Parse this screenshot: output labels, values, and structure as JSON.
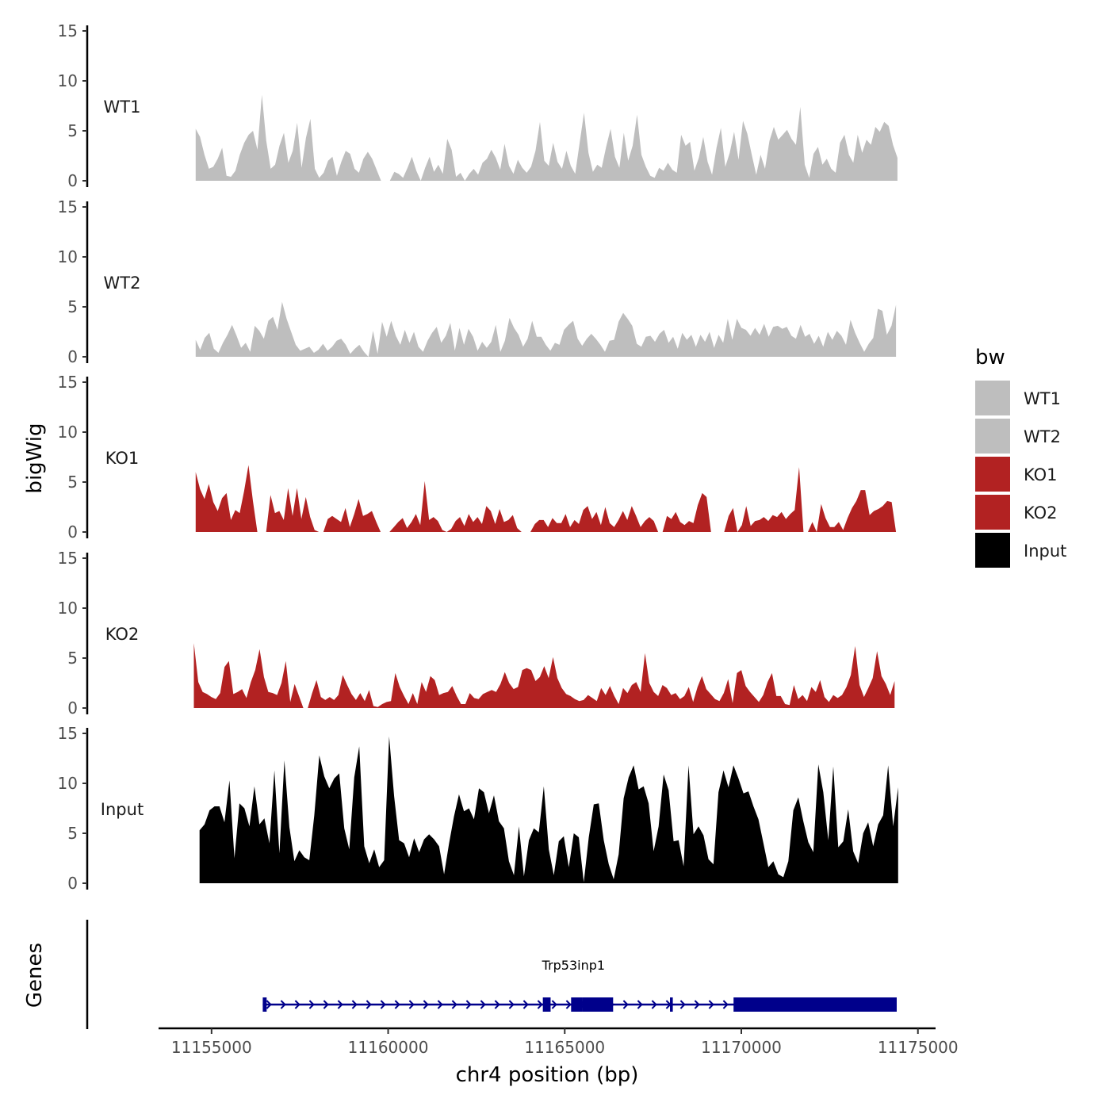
{
  "chart_data": {
    "type": "area",
    "ylabel": "bigWig",
    "xlabel": "chr4 position (bp)",
    "gene_panel_label": "Genes",
    "ylim": [
      0,
      15
    ],
    "yticks": [
      0,
      5,
      10,
      15
    ],
    "xlim": [
      11153500,
      11175500
    ],
    "xticks": [
      11155000,
      11160000,
      11165000,
      11170000,
      11175000
    ],
    "xtick_labels": [
      "11155000",
      "11160000",
      "11165000",
      "11170000",
      "11175000"
    ],
    "ytick_labels": [
      "0",
      "5",
      "10",
      "15"
    ],
    "legend": {
      "title": "bw",
      "position": "right",
      "entries": [
        {
          "label": "WT1",
          "color": "#bebebe"
        },
        {
          "label": "WT2",
          "color": "#bebebe"
        },
        {
          "label": "KO1",
          "color": "#b22222"
        },
        {
          "label": "KO2",
          "color": "#b22222"
        },
        {
          "label": "Input",
          "color": "#000000"
        }
      ]
    },
    "series": [
      {
        "name": "WT1",
        "color": "#bebebe",
        "x_start": 11154550,
        "x_end": 11174420,
        "values": [
          5.2,
          4.4,
          2.6,
          1.2,
          1.4,
          2.2,
          3.3,
          0.5,
          0.4,
          1.0,
          2.6,
          3.8,
          4.6,
          5.0,
          3.1,
          8.6,
          4.0,
          1.2,
          1.6,
          3.5,
          4.8,
          1.8,
          3.0,
          5.8,
          1.3,
          4.3,
          6.2,
          1.2,
          0.3,
          0.8,
          2.0,
          2.4,
          0.5,
          1.9,
          3.0,
          2.7,
          1.2,
          0.8,
          2.2,
          2.9,
          2.2,
          1.1,
          0,
          0,
          0,
          0.9,
          0.7,
          0.3,
          1.3,
          2.4,
          1.0,
          0,
          1.3,
          2.4,
          0.9,
          1.6,
          0.7,
          4.2,
          3.1,
          0.4,
          0.8,
          0,
          0.7,
          1.2,
          0.6,
          1.8,
          2.2,
          3.1,
          2.3,
          1.1,
          3.7,
          1.5,
          0.7,
          2.1,
          1.3,
          0.8,
          1.4,
          3.0,
          5.9,
          2.0,
          1.5,
          3.8,
          1.9,
          1.2,
          3.0,
          1.5,
          0.7,
          3.8,
          6.8,
          2.8,
          0.9,
          1.6,
          1.3,
          3.4,
          5.2,
          2.4,
          1.3,
          4.8,
          2.0,
          3.5,
          6.6,
          2.6,
          1.4,
          0.5,
          0.3,
          1.3,
          1.0,
          1.8,
          1.1,
          0.8,
          4.6,
          3.5,
          3.9,
          1.0,
          2.3,
          4.4,
          1.9,
          0.6,
          3.3,
          5.3,
          1.4,
          2.8,
          4.9,
          2.1,
          6.0,
          4.7,
          2.6,
          0.6,
          2.6,
          1.2,
          4.0,
          5.4,
          4.1,
          4.6,
          5.1,
          4.2,
          3.6,
          7.4,
          1.6,
          0.3,
          2.7,
          3.4,
          1.6,
          2.2,
          1.2,
          0.8,
          3.8,
          4.6,
          2.6,
          1.8,
          4.6,
          2.8,
          4.1,
          3.6,
          5.4,
          4.9,
          5.9,
          5.5,
          3.6,
          2.3
        ]
      },
      {
        "name": "WT2",
        "color": "#bebebe",
        "x_start": 11154550,
        "x_end": 11174380,
        "values": [
          1.7,
          0.7,
          1.9,
          2.4,
          0.8,
          0.4,
          1.4,
          2.2,
          3.2,
          2.1,
          0.9,
          1.4,
          0.5,
          3.1,
          2.6,
          1.8,
          3.6,
          4.0,
          2.7,
          5.5,
          3.8,
          2.5,
          1.2,
          0.6,
          0.8,
          1.0,
          0.4,
          0.7,
          1.3,
          0.6,
          1.0,
          1.6,
          1.8,
          1.2,
          0.3,
          0.8,
          1.2,
          0.5,
          0,
          2.6,
          0.3,
          3.5,
          2.0,
          3.6,
          2.1,
          1.2,
          2.7,
          1.4,
          2.5,
          1.0,
          0.5,
          1.6,
          2.4,
          3.0,
          1.4,
          2.1,
          3.4,
          0.6,
          2.9,
          1.2,
          2.8,
          2.0,
          0.6,
          1.5,
          0.9,
          1.5,
          3.2,
          0.5,
          1.6,
          3.9,
          2.9,
          2.2,
          1.0,
          1.8,
          3.6,
          2.0,
          2.0,
          1.2,
          0.6,
          1.4,
          1.2,
          2.7,
          3.2,
          3.6,
          1.8,
          1.1,
          1.8,
          2.3,
          1.8,
          1.2,
          0.5,
          1.6,
          1.7,
          3.5,
          4.4,
          3.8,
          3.1,
          1.3,
          1.0,
          2.0,
          2.1,
          1.5,
          2.3,
          2.7,
          1.4,
          2.0,
          0.8,
          2.4,
          1.7,
          2.2,
          1.0,
          2.2,
          1.5,
          2.5,
          0.9,
          2.2,
          1.4,
          3.8,
          1.7,
          3.8,
          2.9,
          2.7,
          2.1,
          2.9,
          2.2,
          3.3,
          2.0,
          3.0,
          3.1,
          2.8,
          3.0,
          2.1,
          1.8,
          3.2,
          2.0,
          2.3,
          1.3,
          2.1,
          1.0,
          2.5,
          1.7,
          2.6,
          2.1,
          1.2,
          3.7,
          2.4,
          1.4,
          0.5,
          1.3,
          1.9,
          4.8,
          4.6,
          2.2,
          3.1,
          5.2
        ]
      },
      {
        "name": "KO1",
        "color": "#b22222",
        "x_start": 11154550,
        "x_end": 11174380,
        "values": [
          6.0,
          4.3,
          3.3,
          4.8,
          3.0,
          2.1,
          3.4,
          3.9,
          1.2,
          2.2,
          1.9,
          4.1,
          6.7,
          3.1,
          0,
          0,
          0,
          3.7,
          1.9,
          2.1,
          1.2,
          4.4,
          1.6,
          4.4,
          1.3,
          3.5,
          1.5,
          0.2,
          0,
          0,
          1.3,
          1.6,
          1.3,
          1.0,
          2.4,
          0.5,
          1.8,
          3.3,
          1.6,
          1.8,
          2.1,
          1.0,
          0,
          0,
          0,
          0.5,
          1.0,
          1.4,
          0.4,
          1.0,
          1.8,
          0.7,
          5.1,
          1.2,
          1.5,
          1.1,
          0.2,
          0,
          0.3,
          1.1,
          1.5,
          0.6,
          1.8,
          1.0,
          1.5,
          0.8,
          2.6,
          2.1,
          0.8,
          2.3,
          1.0,
          1.2,
          1.7,
          0.4,
          0,
          0,
          0,
          0.8,
          1.2,
          1.2,
          0.5,
          1.4,
          0.9,
          0.9,
          1.8,
          0.5,
          1.2,
          0.8,
          2.2,
          2.6,
          1.3,
          2.0,
          0.7,
          2.5,
          0.9,
          0.5,
          1.2,
          2.1,
          1.2,
          2.6,
          1.6,
          0.5,
          1.1,
          1.5,
          1.1,
          0,
          0,
          1.6,
          1.3,
          2.0,
          1.0,
          0.7,
          1.1,
          0.9,
          2.7,
          3.9,
          3.5,
          0,
          0,
          0,
          0,
          1.6,
          2.4,
          0,
          0.7,
          2.6,
          0.6,
          1.1,
          1.2,
          1.5,
          1.1,
          1.7,
          1.5,
          2.0,
          1.3,
          1.8,
          2.2,
          6.5,
          0,
          0,
          1.0,
          0,
          2.8,
          1.4,
          0.5,
          0.5,
          1.0,
          0.2,
          1.4,
          2.4,
          3.1,
          4.2,
          4.2,
          1.7,
          2.1,
          2.3,
          2.6,
          3.1,
          3.0,
          0
        ]
      },
      {
        "name": "KO2",
        "color": "#b22222",
        "x_start": 11154500,
        "x_end": 11174340,
        "values": [
          6.5,
          2.6,
          1.6,
          1.4,
          1.1,
          0.9,
          1.5,
          4.1,
          4.7,
          1.4,
          1.6,
          1.9,
          1.0,
          2.6,
          3.8,
          5.9,
          3.1,
          1.6,
          1.5,
          1.3,
          2.5,
          4.7,
          0.6,
          2.4,
          1.2,
          0,
          0,
          1.5,
          2.8,
          1.1,
          0.8,
          1.1,
          0.8,
          1.3,
          3.3,
          2.3,
          1.4,
          0.8,
          1.5,
          0.7,
          1.8,
          0.2,
          0.1,
          0.4,
          0.6,
          0.7,
          3.5,
          2.1,
          1.2,
          0.4,
          1.5,
          0.4,
          2.6,
          1.6,
          3.2,
          2.8,
          1.3,
          1.5,
          1.6,
          2.2,
          1.2,
          0.4,
          0.4,
          1.5,
          1.0,
          0.9,
          1.4,
          1.6,
          1.8,
          1.6,
          2.4,
          3.6,
          2.5,
          1.9,
          2.1,
          3.8,
          4.0,
          3.8,
          2.7,
          3.1,
          4.2,
          3.0,
          5.1,
          3.0,
          2.0,
          1.4,
          1.2,
          0.9,
          0.7,
          0.8,
          1.3,
          1.0,
          0.7,
          2.0,
          1.3,
          2.2,
          1.2,
          0.4,
          2.0,
          1.5,
          2.3,
          2.6,
          1.6,
          5.5,
          2.5,
          1.6,
          1.2,
          2.3,
          2.0,
          1.3,
          1.5,
          0.9,
          1.2,
          2.1,
          0.6,
          2.1,
          3.2,
          1.9,
          1.4,
          0.9,
          0.7,
          1.5,
          2.9,
          0.5,
          3.5,
          3.8,
          2.2,
          1.6,
          1.1,
          0.6,
          1.3,
          2.6,
          3.5,
          1.2,
          1.2,
          0.4,
          0.3,
          2.3,
          0.9,
          1.3,
          0.7,
          2.1,
          1.6,
          2.8,
          1.1,
          0.6,
          1.3,
          1.0,
          1.3,
          2.1,
          3.3,
          6.2,
          2.3,
          1.1,
          2.0,
          3.0,
          5.7,
          3.2,
          2.4,
          1.3,
          2.7
        ]
      },
      {
        "name": "Input",
        "color": "#000000",
        "x_start": 11154660,
        "x_end": 11174440,
        "values": [
          5.3,
          5.9,
          7.3,
          7.7,
          7.7,
          6.1,
          10.3,
          2.5,
          8.0,
          7.5,
          5.7,
          9.7,
          5.9,
          6.5,
          4.0,
          11.3,
          3.0,
          12.3,
          5.6,
          2.2,
          3.3,
          2.6,
          2.3,
          6.8,
          12.8,
          10.7,
          9.5,
          10.5,
          11.0,
          5.5,
          3.4,
          10.6,
          13.7,
          3.7,
          2.0,
          3.4,
          1.6,
          2.3,
          14.7,
          8.7,
          4.3,
          4.0,
          2.6,
          4.5,
          3.1,
          4.4,
          4.9,
          4.4,
          3.7,
          0.9,
          4.0,
          6.7,
          8.9,
          7.2,
          7.5,
          6.4,
          9.5,
          9.1,
          7.0,
          8.8,
          6.2,
          5.5,
          2.2,
          0.8,
          5.7,
          0.7,
          4.3,
          5.5,
          5.1,
          9.7,
          3.4,
          0.8,
          4.2,
          4.7,
          1.6,
          5.0,
          4.6,
          0.1,
          4.6,
          7.9,
          8.0,
          4.3,
          1.9,
          0.4,
          2.9,
          8.5,
          10.6,
          11.8,
          9.4,
          9.7,
          8.0,
          3.2,
          5.7,
          10.9,
          9.3,
          4.2,
          4.3,
          1.7,
          11.8,
          4.9,
          5.7,
          4.8,
          2.4,
          1.9,
          9.1,
          11.3,
          9.6,
          11.8,
          10.5,
          9.0,
          9.2,
          7.7,
          6.4,
          4.0,
          1.6,
          2.2,
          0.9,
          0.6,
          2.2,
          7.3,
          8.6,
          6.2,
          4.1,
          3.1,
          11.9,
          9.1,
          4.3,
          11.7,
          3.6,
          4.2,
          7.4,
          3.2,
          2.0,
          5.0,
          6.1,
          3.7,
          5.9,
          6.8,
          11.8,
          5.7,
          9.6
        ]
      }
    ],
    "genes": [
      {
        "name": "Trp53inp1",
        "strand": "+",
        "start": 11156450,
        "end": 11174400,
        "exons": [
          {
            "start": 11156450,
            "end": 11156560
          },
          {
            "start": 11164380,
            "end": 11164600
          },
          {
            "start": 11165180,
            "end": 11165500
          },
          {
            "start": 11165500,
            "end": 11166370
          },
          {
            "start": 11167980,
            "end": 11168060
          },
          {
            "start": 11169780,
            "end": 11174400
          }
        ]
      }
    ]
  }
}
